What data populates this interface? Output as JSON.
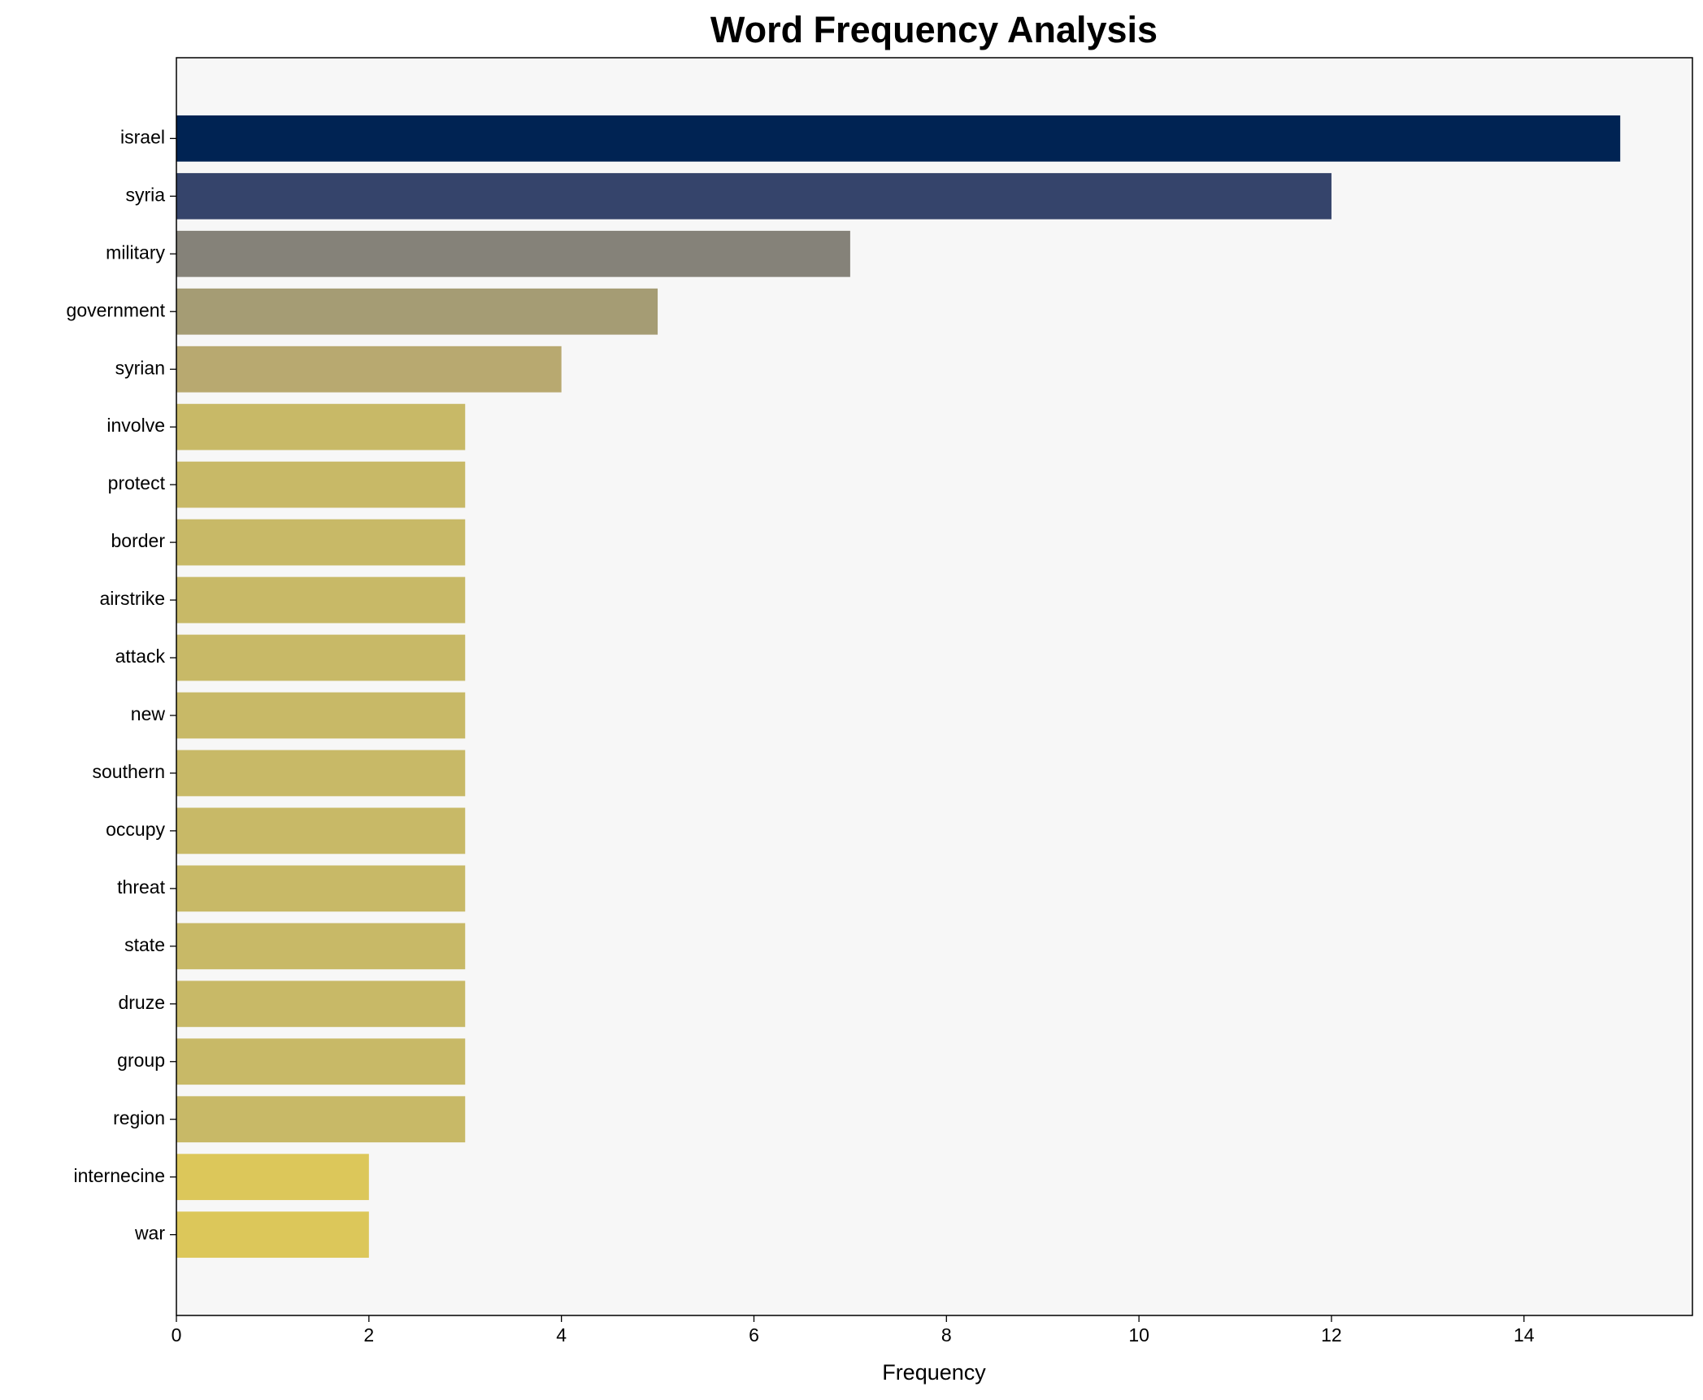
{
  "chart_data": {
    "type": "barh",
    "title": "Word Frequency Analysis",
    "xlabel": "Frequency",
    "categories": [
      "israel",
      "syria",
      "military",
      "government",
      "syrian",
      "involve",
      "protect",
      "border",
      "airstrike",
      "attack",
      "new",
      "southern",
      "occupy",
      "threat",
      "state",
      "druze",
      "group",
      "region",
      "internecine",
      "war"
    ],
    "values": [
      15,
      12,
      7,
      5,
      4,
      3,
      3,
      3,
      3,
      3,
      3,
      3,
      3,
      3,
      3,
      3,
      3,
      3,
      2,
      2
    ],
    "colors": [
      "#002353",
      "#35446b",
      "#858279",
      "#a59c74",
      "#b8a970",
      "#c8b967",
      "#c8b967",
      "#c8b967",
      "#c8b967",
      "#c8b967",
      "#c8b967",
      "#c8b967",
      "#c8b967",
      "#c8b967",
      "#c8b967",
      "#c8b967",
      "#c8b967",
      "#c8b967",
      "#dcc75a",
      "#dcc75a"
    ],
    "xlim": [
      0,
      15.75
    ],
    "xticks": [
      0,
      2,
      4,
      6,
      8,
      10,
      12,
      14
    ],
    "background": "#f7f7f7"
  }
}
